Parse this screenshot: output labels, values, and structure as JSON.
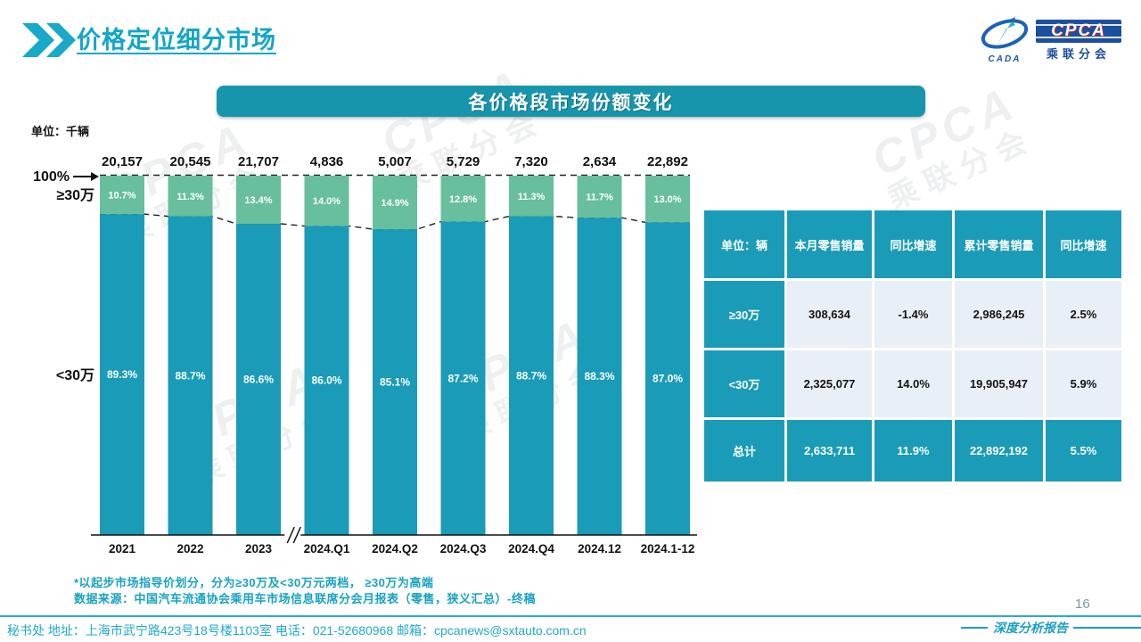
{
  "header": {
    "title": "价格定位细分市场"
  },
  "logo": {
    "cada": "CADA",
    "cpca": "CPCA",
    "sub": "乘联分会"
  },
  "banner": {
    "title": "各价格段市场份额变化"
  },
  "chart_data": {
    "type": "bar",
    "subtype": "stacked-100-percent",
    "unit_label": "单位：千辆",
    "top_axis_label": "100%",
    "left_label_high": "≥30万",
    "left_label_low": "<30万",
    "categories": [
      "2021",
      "2022",
      "2023",
      "2024.Q1",
      "2024.Q2",
      "2024.Q3",
      "2024.Q4",
      "2024.12",
      "2024.1-12"
    ],
    "totals": [
      "20,157",
      "20,545",
      "21,707",
      "4,836",
      "5,007",
      "5,729",
      "7,320",
      "2,634",
      "22,892"
    ],
    "series": [
      {
        "name": "≥30万",
        "values": [
          10.7,
          11.3,
          13.4,
          14.0,
          14.9,
          12.8,
          11.3,
          11.7,
          13.0
        ]
      },
      {
        "name": "<30万",
        "values": [
          89.3,
          88.7,
          86.6,
          86.0,
          85.1,
          87.2,
          88.7,
          88.3,
          87.0
        ]
      }
    ],
    "colors": {
      "high": "#68BF9D",
      "low": "#1A9BB7"
    },
    "axis_break_after_index": 2,
    "ylim": [
      0,
      100
    ],
    "grid": false,
    "legend": "left-axis-labels"
  },
  "table": {
    "headers": [
      "单位：辆",
      "本月零售销量",
      "同比增速",
      "累计零售销量",
      "同比增速"
    ],
    "rows": [
      {
        "label": "≥30万",
        "cells": [
          "308,634",
          "-1.4%",
          "2,986,245",
          "2.5%"
        ],
        "style": "data"
      },
      {
        "label": "<30万",
        "cells": [
          "2,325,077",
          "14.0%",
          "19,905,947",
          "5.9%"
        ],
        "style": "data"
      },
      {
        "label": "总计",
        "cells": [
          "2,633,711",
          "11.9%",
          "22,892,192",
          "5.5%"
        ],
        "style": "total"
      }
    ]
  },
  "notes": {
    "line1": "*以起步市场指导价划分，分为≥30万及<30万元两档， ≥30万为高端",
    "line2": "数据来源：中国汽车流通协会乘用车市场信息联席分会月报表（零售，狭义汇总）-终稿"
  },
  "footer": {
    "page": "16",
    "report_label": "深度分析报告",
    "contact": "秘书处  地址：上海市武宁路423号18号楼1103室 电话：021-52680968   邮箱：cpcanews@sxtauto.com.cn"
  },
  "watermark": {
    "big": "CPCA",
    "sub": "乘联分会"
  },
  "colors": {
    "teal": "#1A9BB7",
    "green": "#68BF9D",
    "banner": "#1795AC",
    "title": "#12A6C8",
    "note": "#18A2C2",
    "cell_bg": "#E9EFF6"
  }
}
